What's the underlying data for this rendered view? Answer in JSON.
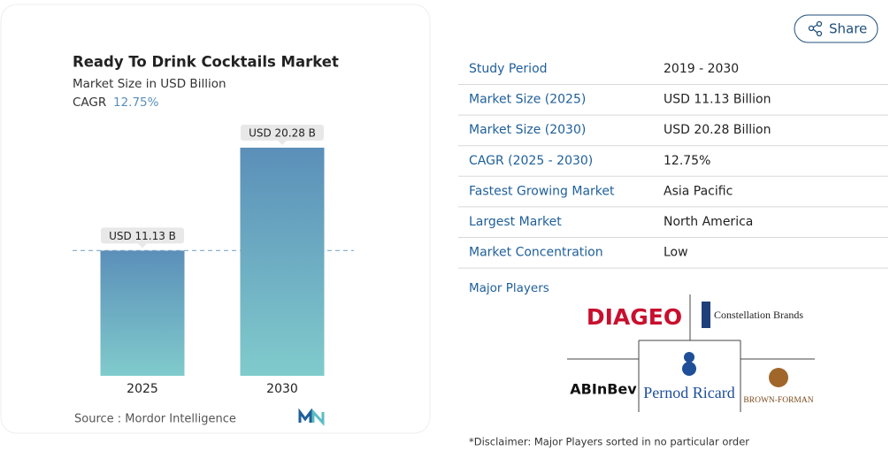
{
  "chart_data": {
    "type": "bar",
    "title": "Ready To Drink Cocktails Market",
    "subtitle": "Market Size in USD Billion",
    "cagr_label": "CAGR",
    "cagr": "12.75%",
    "categories": [
      "2025",
      "2030"
    ],
    "values": [
      11.13,
      20.28
    ],
    "value_labels": [
      "USD 11.13 B",
      "USD 20.28 B"
    ],
    "source": "Source :  Mordor Intelligence"
  },
  "share": "Share",
  "table": {
    "rows": [
      [
        "Study Period",
        "2019 - 2030"
      ],
      [
        "Market Size (2025)",
        "USD 11.13 Billion"
      ],
      [
        "Market Size (2030)",
        "USD 20.28 Billion"
      ],
      [
        "CAGR (2025 - 2030)",
        "12.75%"
      ],
      [
        "Fastest Growing Market",
        "Asia Pacific"
      ],
      [
        "Largest Market",
        "North America"
      ],
      [
        "Market Concentration",
        "Low"
      ]
    ]
  },
  "major_players": {
    "title": "Major Players",
    "logos": [
      "DIAGEO",
      "Constellation Brands",
      "ABInBev",
      "Pernod Ricard",
      "BROWN-FORMAN"
    ]
  },
  "disclaimer": "*Disclaimer: Major Players sorted in no particular order"
}
